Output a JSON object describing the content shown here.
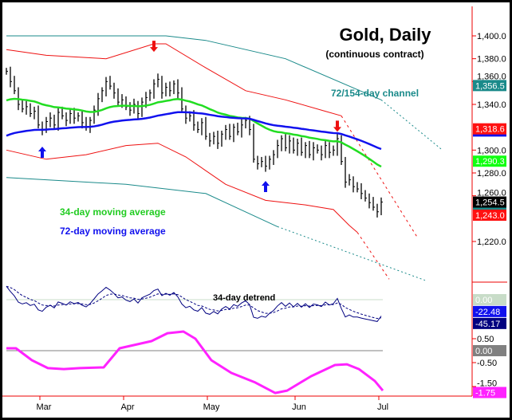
{
  "chart_data": {
    "type": "line",
    "title": "Gold, Daily",
    "subtitle": "(continuous contract)",
    "annotations": {
      "channel": "72/154-day channel",
      "ma34": "34-day moving average",
      "ma72": "72-day moving average",
      "detrend": "34-day detrend"
    },
    "colors": {
      "bars": "#000000",
      "ma34": "#22dd22",
      "ma72": "#1111ee",
      "channel_inner": "#ee1111",
      "channel_outer": "#1a8a8a",
      "detrend": "#000080",
      "cycle": "#ff22ff",
      "axis": "#ee0000"
    },
    "x_tick_labels": [
      "Mar",
      "Apr",
      "May",
      "Jun",
      "Jul"
    ],
    "x_tick_bar_index": [
      9.4,
      30.4,
      51.4,
      73.4,
      94.4
    ],
    "ylim": [
      1200,
      1412
    ],
    "y_tick_labels": [
      "1,400.0",
      "1,380.0",
      "1,360.0",
      "1,340.0",
      "1,300.0",
      "1,280.0",
      "1,260.0",
      "1,220.0"
    ],
    "y_tick_values": [
      1400,
      1380,
      1360,
      1340,
      1300,
      1280,
      1260,
      1220
    ],
    "closes": [
      1369,
      1360,
      1352,
      1340,
      1336,
      1338,
      1332,
      1334,
      1322,
      1318,
      1325,
      1328,
      1322,
      1333,
      1330,
      1326,
      1332,
      1328,
      1330,
      1324,
      1320,
      1326,
      1335,
      1345,
      1352,
      1360,
      1356,
      1350,
      1342,
      1344,
      1338,
      1335,
      1340,
      1332,
      1342,
      1346,
      1350,
      1358,
      1362,
      1350,
      1355,
      1352,
      1358,
      1350,
      1336,
      1328,
      1330,
      1322,
      1318,
      1324,
      1312,
      1308,
      1312,
      1306,
      1314,
      1318,
      1312,
      1320,
      1316,
      1322,
      1326,
      1318,
      1292,
      1288,
      1290,
      1286,
      1292,
      1296,
      1304,
      1310,
      1302,
      1308,
      1300,
      1306,
      1298,
      1304,
      1296,
      1302,
      1300,
      1296,
      1304,
      1298,
      1300,
      1310,
      1290,
      1272,
      1274,
      1268,
      1266,
      1262,
      1258,
      1254,
      1250,
      1246,
      1254.5
    ],
    "ma34_seed": 1342,
    "ma34_period": 34,
    "ma72_seed": 1311,
    "ma72_period": 72,
    "channel": {
      "upper_outer": [
        [
          0,
          1400
        ],
        [
          40,
          1400
        ],
        [
          50,
          1396
        ],
        [
          70,
          1380
        ],
        [
          94,
          1344
        ]
      ],
      "upper_outer_projection": [
        [
          94,
          1344
        ],
        [
          109,
          1301
        ]
      ],
      "lower_outer": [
        [
          0,
          1276
        ],
        [
          30,
          1270
        ],
        [
          50,
          1262
        ],
        [
          68,
          1233
        ]
      ],
      "lower_outer_projection": [
        [
          68,
          1233
        ],
        [
          105,
          1186
        ]
      ],
      "upper_inner": [
        [
          0,
          1388
        ],
        [
          10,
          1383
        ],
        [
          25,
          1380
        ],
        [
          37,
          1393
        ],
        [
          40,
          1393
        ],
        [
          50,
          1372
        ],
        [
          60,
          1352
        ],
        [
          70,
          1344
        ],
        [
          80,
          1334
        ],
        [
          84,
          1330
        ]
      ],
      "upper_inner_projection": [
        [
          84,
          1330
        ],
        [
          103,
          1224
        ]
      ],
      "lower_inner": [
        [
          0,
          1300
        ],
        [
          10,
          1292
        ],
        [
          20,
          1296
        ],
        [
          30,
          1304
        ],
        [
          38,
          1306
        ],
        [
          45,
          1294
        ],
        [
          55,
          1270
        ],
        [
          65,
          1256
        ],
        [
          75,
          1252
        ],
        [
          82,
          1248
        ],
        [
          86,
          1234
        ],
        [
          88,
          1228
        ]
      ],
      "lower_inner_projection": [
        [
          88,
          1228
        ],
        [
          96,
          1187
        ]
      ]
    },
    "arrows": [
      {
        "type": "down",
        "bar": 37,
        "price": 1386,
        "color": "#ee1111"
      },
      {
        "type": "down",
        "bar": 83,
        "price": 1316,
        "color": "#ee1111"
      },
      {
        "type": "up",
        "bar": 9,
        "price": 1303,
        "color": "#1111ee"
      },
      {
        "type": "up",
        "bar": 65,
        "price": 1273,
        "color": "#1111ee"
      }
    ],
    "price_labels": [
      {
        "text": "1,356.5",
        "value": 1356.5,
        "bg": "#1a8a8a",
        "fg": "#ffffff"
      },
      {
        "text": "1,318.6",
        "value": 1318.6,
        "bg": "#ff1111",
        "fg": "#ffffff"
      },
      {
        "text": "1,290.3",
        "value": 1290.3,
        "bg": "#11ff11",
        "fg": "#ffffff"
      },
      {
        "text": "1,254.5",
        "value": 1254.5,
        "bg": "#000000",
        "fg": "#ffffff"
      },
      {
        "text": "1,243.0",
        "value": 1243.0,
        "bg": "#ff1111",
        "fg": "#ffffff"
      }
    ],
    "detrend_panel": {
      "zero_label": "0.00",
      "labels": [
        {
          "text": "0.00",
          "value": 0,
          "bg": "#c8dcc8",
          "fg": "#ffffff"
        },
        {
          "text": "-22.48",
          "value": -22.48,
          "bg": "#1111ee",
          "fg": "#ffffff"
        },
        {
          "text": "-45.17",
          "value": -45.17,
          "bg": "#000080",
          "fg": "#ffffff"
        }
      ]
    },
    "cycle_panel": {
      "tick_labels": [
        "0.50",
        "-0.50",
        "-1.50"
      ],
      "tick_values": [
        0.5,
        -0.5,
        -1.5
      ],
      "labels": [
        {
          "text": "0.00",
          "value": 0,
          "bg": "#808080",
          "fg": "#ffffff"
        },
        {
          "text": "-1.75",
          "value": -1.75,
          "bg": "#ff22ff",
          "fg": "#ffffff"
        }
      ],
      "points": [
        [
          0,
          0.1
        ],
        [
          2.4,
          0.1
        ],
        [
          6.4,
          -0.4
        ],
        [
          10.4,
          -0.73
        ],
        [
          14.4,
          -0.77
        ],
        [
          18.4,
          -0.73
        ],
        [
          24.4,
          -0.7
        ],
        [
          28.4,
          0.1
        ],
        [
          36.4,
          0.4
        ],
        [
          40.4,
          0.73
        ],
        [
          44.4,
          0.8
        ],
        [
          47.4,
          0.5
        ],
        [
          51.4,
          -0.4
        ],
        [
          56.4,
          -0.93
        ],
        [
          62.4,
          -1.33
        ],
        [
          67.4,
          -1.77
        ],
        [
          70.4,
          -1.67
        ],
        [
          76.4,
          -1.07
        ],
        [
          82.4,
          -0.6
        ],
        [
          85.4,
          -0.57
        ],
        [
          88.4,
          -0.77
        ],
        [
          92.4,
          -1.27
        ],
        [
          94.4,
          -1.67
        ]
      ]
    }
  }
}
